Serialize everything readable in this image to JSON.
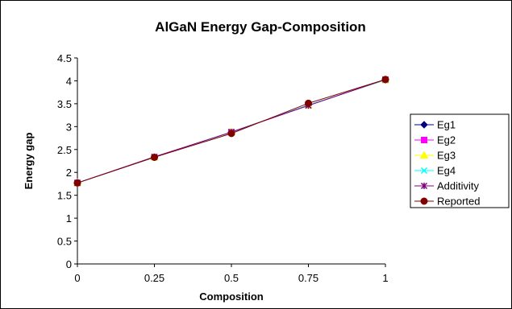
{
  "chart_data": {
    "type": "line",
    "title": "AlGaN Energy Gap-Composition",
    "xlabel": "Composition",
    "ylabel": "Energy gap",
    "x": [
      0,
      0.25,
      0.5,
      0.75,
      1
    ],
    "x_tick_labels": [
      "0",
      "0.25",
      "0.5",
      "0.75",
      "1"
    ],
    "y_tick_labels": [
      "0",
      "0.5",
      "1",
      "1.5",
      "2",
      "2.5",
      "3",
      "3.5",
      "4",
      "4.5"
    ],
    "xlim": [
      0,
      1
    ],
    "ylim": [
      0,
      4.5
    ],
    "grid": false,
    "legend_position": "right",
    "series": [
      {
        "name": "Eg1",
        "values": [
          1.77,
          2.33,
          2.88,
          3.47,
          4.02
        ],
        "color": "#000080",
        "marker": "diamond"
      },
      {
        "name": "Eg2",
        "values": [
          1.77,
          2.33,
          2.88,
          3.47,
          4.02
        ],
        "color": "#ff00ff",
        "marker": "square"
      },
      {
        "name": "Eg3",
        "values": [
          1.77,
          2.33,
          2.88,
          3.47,
          4.02
        ],
        "color": "#ffff00",
        "marker": "triangle"
      },
      {
        "name": "Eg4",
        "values": [
          1.77,
          2.33,
          2.88,
          3.47,
          4.02
        ],
        "color": "#00ffff",
        "marker": "x"
      },
      {
        "name": "Additivity",
        "values": [
          1.77,
          2.34,
          2.88,
          3.46,
          4.03
        ],
        "color": "#800080",
        "marker": "star"
      },
      {
        "name": "Reported",
        "values": [
          1.77,
          2.33,
          2.85,
          3.51,
          4.03
        ],
        "color": "#800000",
        "marker": "circle"
      }
    ]
  }
}
